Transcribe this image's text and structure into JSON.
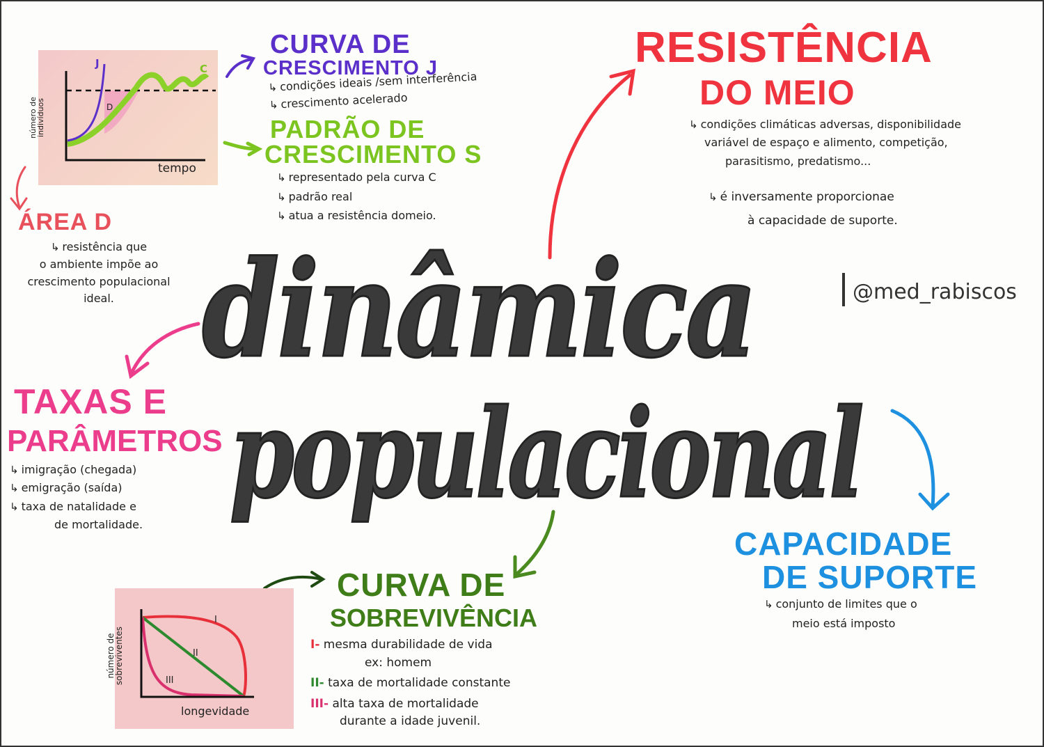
{
  "title": {
    "line1": "dinâmica",
    "line2": "populacional"
  },
  "handle": "@med_rabiscos",
  "growth_chart": {
    "ylabel_line1": "número de",
    "ylabel_line2": "indivíduos",
    "xlabel": "tempo",
    "curve_j_label": "J",
    "curve_c_label": "C",
    "area_label": "D"
  },
  "curva_j": {
    "title_line1": "CURVA DE",
    "title_line2": "CRESCIMENTO J",
    "color": "#5b2fc9",
    "bullets": [
      "condições ideais /sem interferência",
      "crescimento acelerado"
    ]
  },
  "padrao_s": {
    "title_line1": "PADRÃO DE",
    "title_line2": "CRESCIMENTO S",
    "color": "#7cc41f",
    "bullets": [
      "representado pela curva C",
      "padrão real",
      "atua a resistência domeio."
    ]
  },
  "area_d": {
    "title": "ÁREA D",
    "color": "#e8505b",
    "lines": [
      "resistência que",
      "o ambiente impõe ao",
      "crescimento populacional",
      "ideal."
    ]
  },
  "resistencia": {
    "title_line1": "RESISTÊNCIA",
    "title_line2": "DO MEIO",
    "color": "#f0343f",
    "lines": [
      "condições climáticas adversas, disponibilidade",
      "variável de espaço e alimento, competição,",
      "parasitismo, predatismo..."
    ],
    "lines2": [
      "é inversamente proporcionae",
      "à capacidade de suporte."
    ]
  },
  "taxas": {
    "title_line1": "TAXAS E",
    "title_line2": "PARÂMETROS",
    "color": "#ec3d8c",
    "lines": [
      "imigração (chegada)",
      "emigração (saída)",
      "taxa de natalidade e",
      "de mortalidade."
    ]
  },
  "capacidade": {
    "title_line1": "CAPACIDADE",
    "title_line2": "DE SUPORTE",
    "color": "#1e90e0",
    "lines": [
      "conjunto de limites que o",
      "meio está imposto"
    ]
  },
  "sobrevivencia": {
    "title_line1": "CURVA DE",
    "title_line2": "SOBREVIVÊNCIA",
    "color": "#3f7d18",
    "items": [
      {
        "numeral": "I",
        "text": "mesma durabilidade de vida",
        "sub": "ex: homem",
        "color": "#e8303a"
      },
      {
        "numeral": "II",
        "text": "taxa de mortalidade constante",
        "color": "#2e8a2e"
      },
      {
        "numeral": "III",
        "text": "alta taxa de mortalidade",
        "sub": "durante a idade juvenil.",
        "color": "#d9306e"
      }
    ]
  },
  "survival_chart": {
    "ylabel_line1": "número de",
    "ylabel_line2": "sobreviventes",
    "xlabel": "longevidade",
    "labels": [
      "I",
      "II",
      "III"
    ]
  }
}
